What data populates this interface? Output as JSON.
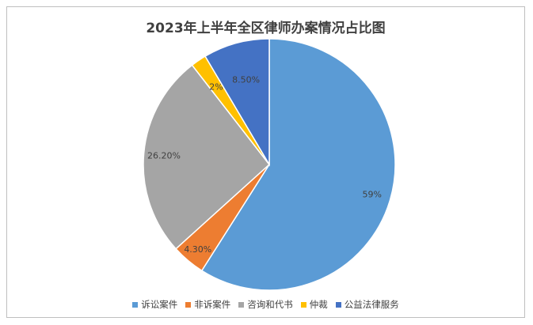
{
  "chart_data": {
    "type": "pie",
    "title": "2023年上半年全区律师办案情况占比图",
    "categories": [
      "诉讼案件",
      "非诉案件",
      "咨询和代书",
      "仲裁",
      "公益法律服务"
    ],
    "values": [
      59,
      4.3,
      26.2,
      2,
      8.5
    ],
    "data_labels": [
      "59%",
      "4.30%",
      "26.20%",
      "2%",
      "8.50%"
    ],
    "colors": [
      "#5b9bd5",
      "#ed7d31",
      "#a5a5a5",
      "#ffc000",
      "#4472c4"
    ],
    "legend_position": "bottom",
    "start_angle": "12 o'clock",
    "direction": "clockwise"
  }
}
